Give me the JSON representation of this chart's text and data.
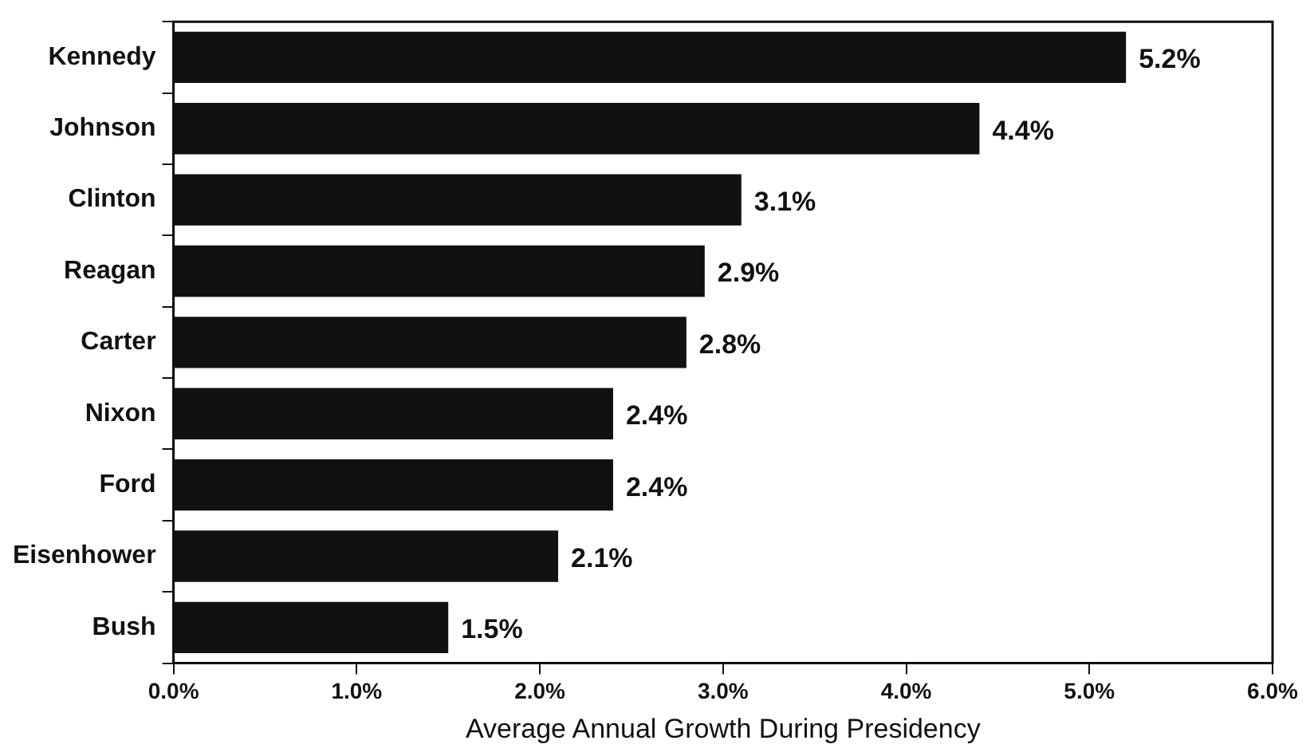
{
  "chart_data": {
    "type": "bar",
    "orientation": "horizontal",
    "xlabel": "Average Annual Growth During Presidency",
    "categories": [
      "Kennedy",
      "Johnson",
      "Clinton",
      "Reagan",
      "Carter",
      "Nixon",
      "Ford",
      "Eisenhower",
      "Bush"
    ],
    "values": [
      5.2,
      4.4,
      3.1,
      2.9,
      2.8,
      2.4,
      2.4,
      2.1,
      1.5
    ],
    "value_labels": [
      "5.2%",
      "4.4%",
      "3.1%",
      "2.9%",
      "2.8%",
      "2.4%",
      "2.4%",
      "2.1%",
      "1.5%"
    ],
    "color": "#111111",
    "xlim": [
      0,
      6
    ],
    "xticks": [
      {
        "value": 0,
        "label": "0.0%"
      },
      {
        "value": 1,
        "label": "1.0%"
      },
      {
        "value": 2,
        "label": "2.0%"
      },
      {
        "value": 3,
        "label": "3.0%"
      },
      {
        "value": 4,
        "label": "4.0%"
      },
      {
        "value": 5,
        "label": "5.0%"
      },
      {
        "value": 6,
        "label": "6.0%"
      }
    ],
    "grid": false,
    "legend": false
  }
}
